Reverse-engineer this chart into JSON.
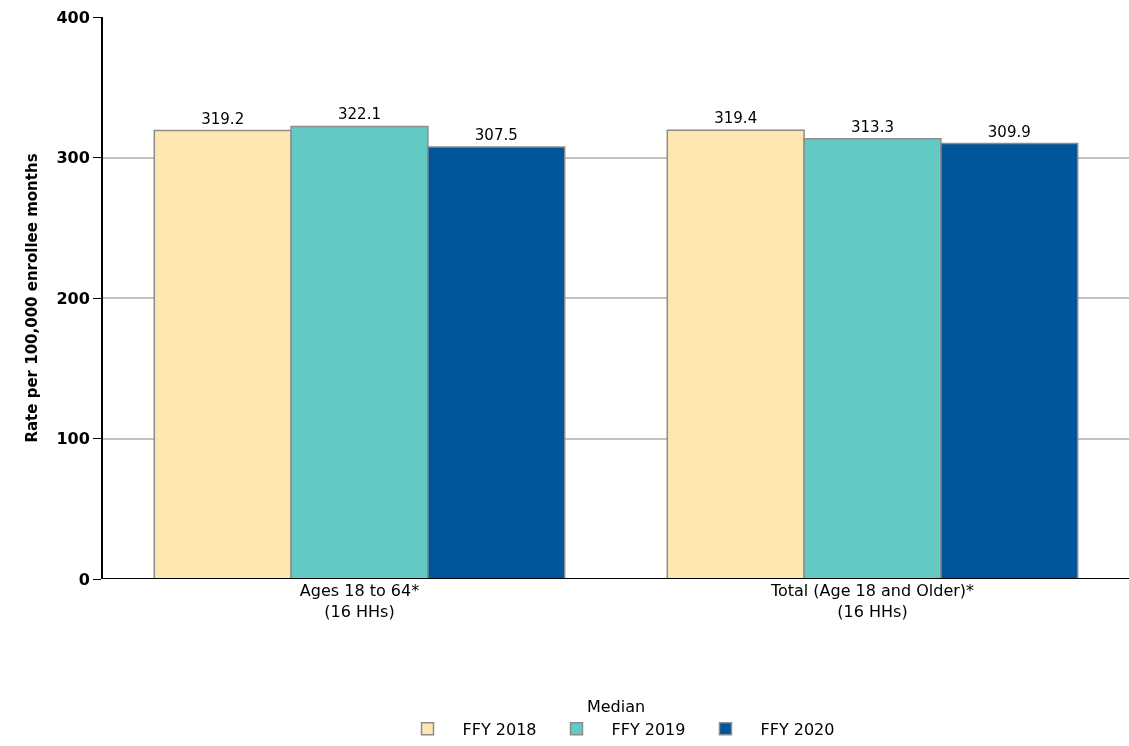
{
  "chart_data": {
    "type": "bar",
    "ylabel": "Rate per 100,000 enrollee months",
    "categories": [
      "Ages 18 to 64*\n(16 HHs)",
      "Total (Age 18 and Older)*\n(16 HHs)"
    ],
    "series": [
      {
        "name": "FFY 2018",
        "color": "#fde6b0",
        "values": [
          319.2,
          319.4
        ]
      },
      {
        "name": "FFY 2019",
        "color": "#62c9c5",
        "values": [
          322.1,
          313.3
        ]
      },
      {
        "name": "FFY 2020",
        "color": "#00559b",
        "values": [
          307.5,
          309.9
        ]
      }
    ],
    "legend_title": "Median",
    "ylim": [
      0,
      400
    ],
    "yticks": [
      0,
      100,
      200,
      300,
      400
    ],
    "grid": "y",
    "legend": "bottom",
    "data_labels": true
  }
}
